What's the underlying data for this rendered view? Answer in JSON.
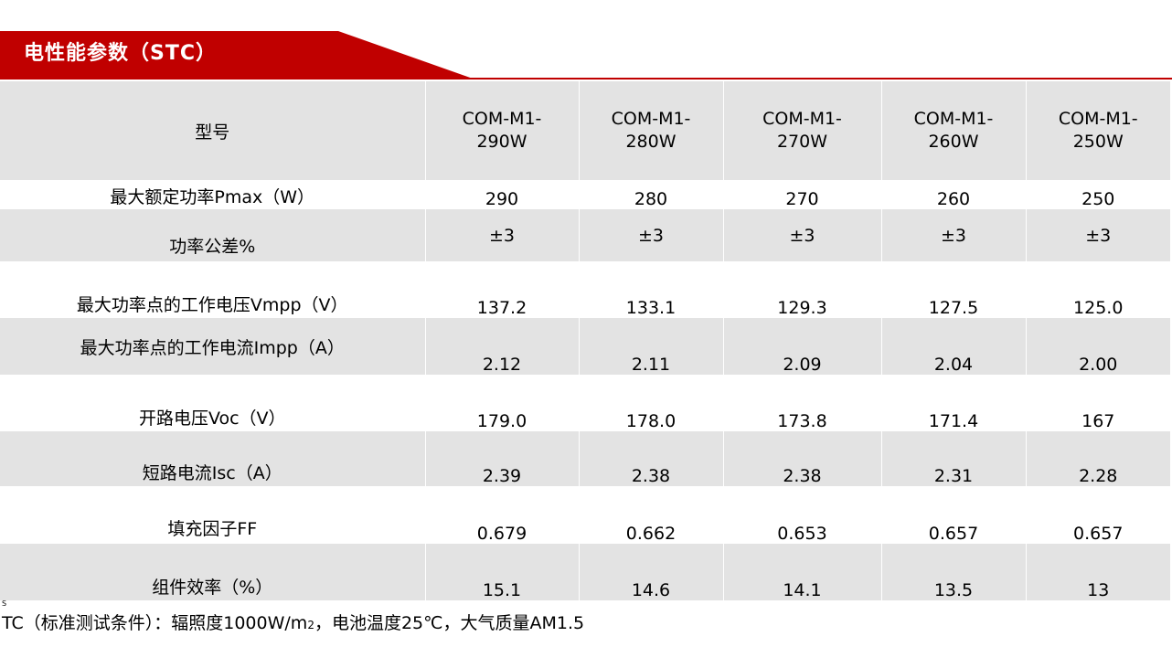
{
  "title": "电性能参数（STC）",
  "header": {
    "label": "型号",
    "models": [
      [
        "COM-M1-",
        "290W"
      ],
      [
        "COM-M1-",
        "280W"
      ],
      [
        "COM-M1-",
        "270W"
      ],
      [
        "COM-M1-",
        "260W"
      ],
      [
        "COM-M1-",
        "250W"
      ]
    ]
  },
  "rows": [
    {
      "label": "最大额定功率Pmax（W）",
      "values": [
        "290",
        "280",
        "270",
        "260",
        "250"
      ]
    },
    {
      "label": "功率公差%",
      "values": [
        "±3",
        "±3",
        "±3",
        "±3",
        "±3"
      ]
    },
    {
      "label": "最大功率点的工作电压Vmpp（V）",
      "values": [
        "137.2",
        "133.1",
        "129.3",
        "127.5",
        "125.0"
      ]
    },
    {
      "label": "最大功率点的工作电流Impp（A）",
      "values": [
        "2.12",
        "2.11",
        "2.09",
        "2.04",
        "2.00"
      ]
    },
    {
      "label": "开路电压Voc（V）",
      "values": [
        "179.0",
        "178.0",
        "173.8",
        "171.4",
        "167"
      ]
    },
    {
      "label": "短路电流Isc（A）",
      "values": [
        "2.39",
        "2.38",
        "2.38",
        "2.31",
        "2.28"
      ]
    },
    {
      "label": "填充因子FF",
      "values": [
        "0.679",
        "0.662",
        "0.653",
        "0.657",
        "0.657"
      ]
    },
    {
      "label": "组件效率（%）",
      "values": [
        "15.1",
        "14.6",
        "14.1",
        "13.5",
        "13"
      ]
    }
  ],
  "note": {
    "prefix_small": "S",
    "text_before_sup": "TC（标准测试条件）：辐照度1000W/m",
    "sup": "2",
    "text_after_sup": "，电池温度25℃，大气质量AM1.5"
  },
  "colors": {
    "accent": "#c00000",
    "row_shade": "#e3e3e3"
  }
}
